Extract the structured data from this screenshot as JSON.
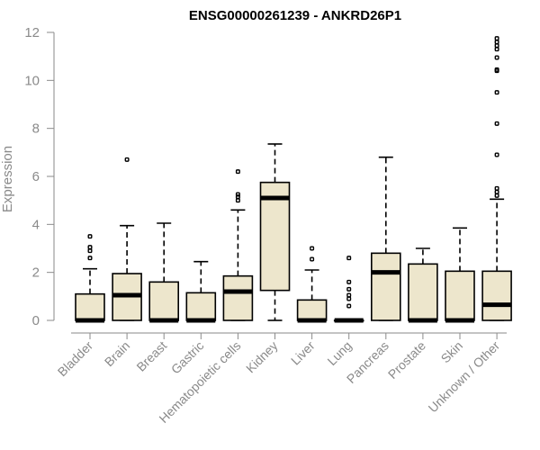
{
  "chart_data": {
    "type": "boxplot",
    "title": "ENSG00000261239 - ANKRD26P1",
    "xlabel": "",
    "ylabel": "Expression",
    "ylim": [
      0,
      12
    ],
    "yticks": [
      0,
      2,
      4,
      6,
      8,
      10,
      12
    ],
    "grid": false,
    "box_color": "#ede6cc",
    "series": [
      {
        "category": "Bladder",
        "min": 0,
        "q1": 0,
        "median": 0,
        "q3": 1.1,
        "max": 2.15,
        "outliers": [
          2.6,
          2.9,
          3.05,
          3.5
        ]
      },
      {
        "category": "Brain",
        "min": 0,
        "q1": 0,
        "median": 1.05,
        "q3": 1.95,
        "max": 3.95,
        "outliers": [
          6.7
        ]
      },
      {
        "category": "Breast",
        "min": 0,
        "q1": 0,
        "median": 0,
        "q3": 1.6,
        "max": 4.05,
        "outliers": []
      },
      {
        "category": "Gastric",
        "min": 0,
        "q1": 0,
        "median": 0,
        "q3": 1.15,
        "max": 2.45,
        "outliers": []
      },
      {
        "category": "Hematopoietic cells",
        "min": 0,
        "q1": 0,
        "median": 1.2,
        "q3": 1.85,
        "max": 4.6,
        "outliers": [
          5.0,
          5.15,
          5.25,
          6.2
        ]
      },
      {
        "category": "Kidney",
        "min": 0,
        "q1": 1.25,
        "median": 5.1,
        "q3": 5.75,
        "max": 7.35,
        "outliers": []
      },
      {
        "category": "Liver",
        "min": 0,
        "q1": 0,
        "median": 0,
        "q3": 0.85,
        "max": 2.1,
        "outliers": [
          2.55,
          3.0
        ]
      },
      {
        "category": "Lung",
        "min": 0,
        "q1": 0,
        "median": 0,
        "q3": 0,
        "max": 0,
        "outliers": [
          0.6,
          0.9,
          1.05,
          1.3,
          1.6,
          2.6
        ]
      },
      {
        "category": "Pancreas",
        "min": 0,
        "q1": 0,
        "median": 2.0,
        "q3": 2.8,
        "max": 6.8,
        "outliers": []
      },
      {
        "category": "Prostate",
        "min": 0,
        "q1": 0,
        "median": 0,
        "q3": 2.35,
        "max": 3.0,
        "outliers": []
      },
      {
        "category": "Skin",
        "min": 0,
        "q1": 0,
        "median": 0,
        "q3": 2.05,
        "max": 3.85,
        "outliers": []
      },
      {
        "category": "Unknown / Other",
        "min": 0,
        "q1": 0,
        "median": 0.65,
        "q3": 2.05,
        "max": 5.05,
        "outliers": [
          5.2,
          5.35,
          5.5,
          6.9,
          8.2,
          9.5,
          10.4,
          10.45,
          10.95,
          11.3,
          11.45,
          11.6,
          11.75
        ]
      }
    ]
  }
}
